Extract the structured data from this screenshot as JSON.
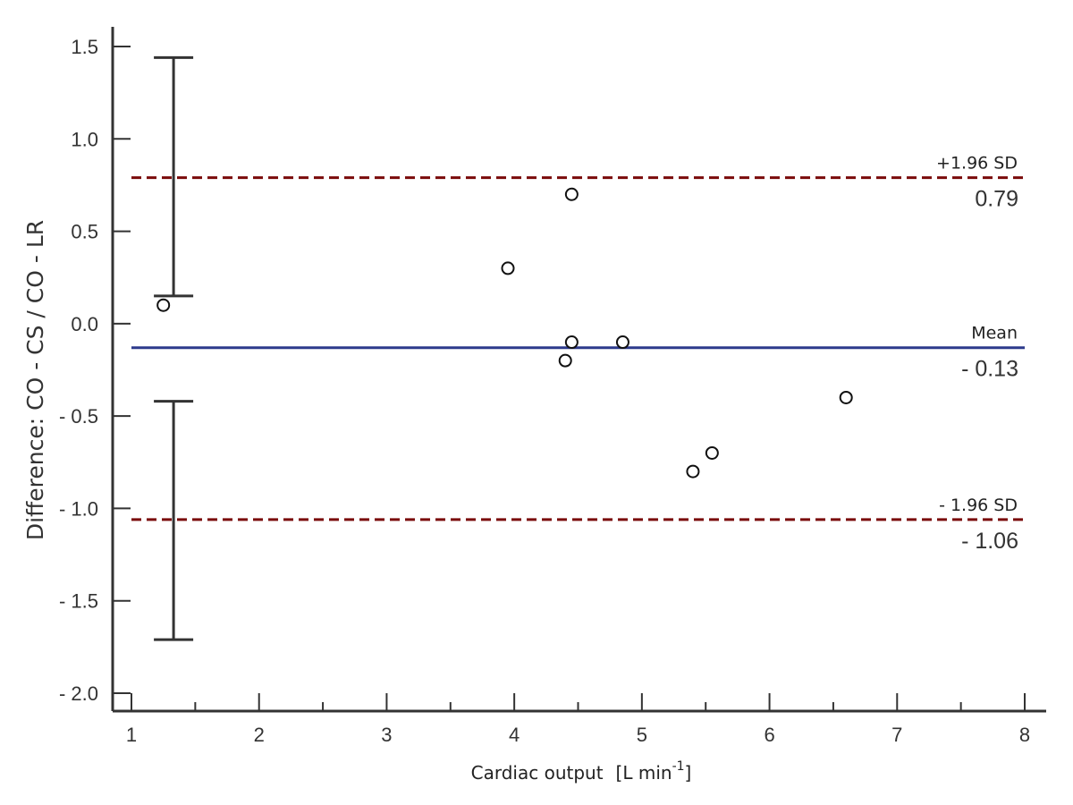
{
  "chart_data": {
    "type": "scatter",
    "title": "",
    "xlabel": "Cardiac output",
    "xlabel_unit_main": "[L min",
    "xlabel_unit_sup": "-1",
    "xlabel_unit_end": "]",
    "ylabel": "Difference: CO - CS / CO - LR",
    "xlim": [
      1,
      8
    ],
    "ylim": [
      -2,
      1.5
    ],
    "x_ticks": [
      {
        "value": 1,
        "label": "1"
      },
      {
        "value": 2,
        "label": "2"
      },
      {
        "value": 3,
        "label": "3"
      },
      {
        "value": 4,
        "label": "4"
      },
      {
        "value": 5,
        "label": "5"
      },
      {
        "value": 6,
        "label": "6"
      },
      {
        "value": 7,
        "label": "7"
      },
      {
        "value": 8,
        "label": "8"
      }
    ],
    "x_minor_ticks": [
      1.5,
      2.5,
      3.5,
      4.5,
      5.5,
      6.5,
      7.5
    ],
    "y_ticks": [
      {
        "value": 1.5,
        "label": "1.5"
      },
      {
        "value": 1.0,
        "label": "1.0"
      },
      {
        "value": 0.5,
        "label": "0.5"
      },
      {
        "value": 0.0,
        "label": "0.0"
      },
      {
        "value": -0.5,
        "label": "- 0.5"
      },
      {
        "value": -1.0,
        "label": "- 1.0"
      },
      {
        "value": -1.5,
        "label": "- 1.5"
      },
      {
        "value": -2.0,
        "label": "- 2.0"
      }
    ],
    "points": [
      {
        "x": 1.25,
        "y": 0.1
      },
      {
        "x": 3.95,
        "y": 0.3
      },
      {
        "x": 4.45,
        "y": 0.7
      },
      {
        "x": 4.45,
        "y": -0.1
      },
      {
        "x": 4.4,
        "y": -0.2
      },
      {
        "x": 4.85,
        "y": -0.1
      },
      {
        "x": 5.4,
        "y": -0.8
      },
      {
        "x": 5.55,
        "y": -0.7
      },
      {
        "x": 6.6,
        "y": -0.4
      }
    ],
    "reference_lines": [
      {
        "name": "+1.96 SD",
        "value": 0.79,
        "value_label": "0.79",
        "color": "#7a0a0a",
        "style": "dashed"
      },
      {
        "name": "Mean",
        "value": -0.13,
        "value_label": "- 0.13",
        "color": "#2d3a8c",
        "style": "solid"
      },
      {
        "name": "- 1.96 SD",
        "value": -1.06,
        "value_label": "- 1.06",
        "color": "#7a0a0a",
        "style": "dashed"
      }
    ],
    "confidence_intervals": [
      {
        "x": 1.33,
        "upper": 1.44,
        "lower": 0.15
      },
      {
        "x": 1.33,
        "upper": -0.42,
        "lower": -1.71
      }
    ],
    "grid": false,
    "legend": "none"
  }
}
